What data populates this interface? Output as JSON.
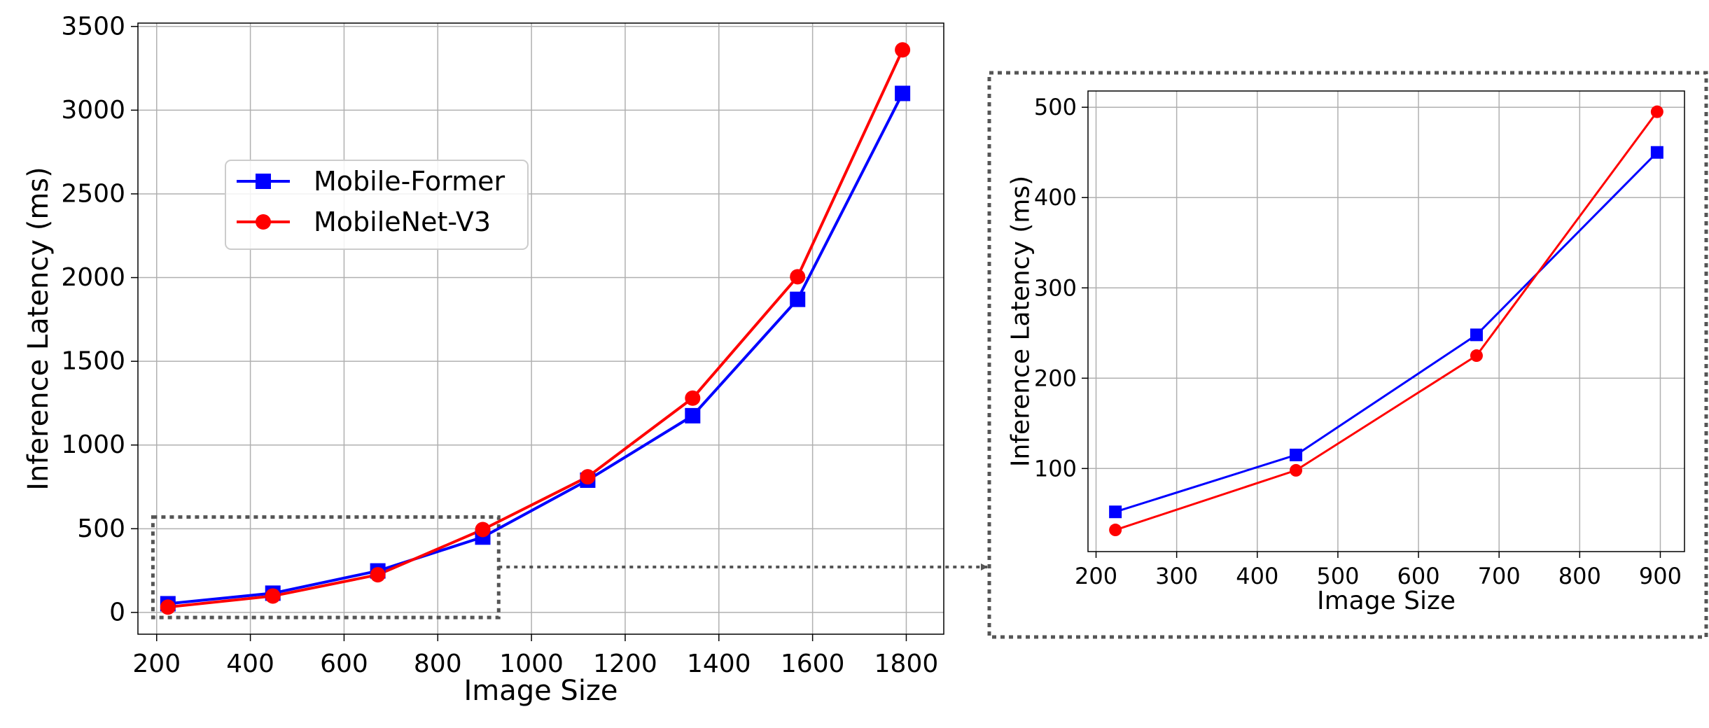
{
  "colors": {
    "mobile_former": "#0000ff",
    "mobilenet_v3": "#ff0000",
    "grid": "#b0b0b0",
    "zoom_frame": "#555555"
  },
  "chart_data": [
    {
      "id": "main",
      "type": "line",
      "xlabel": "Image Size",
      "ylabel": "Inference Latency (ms)",
      "xlim": [
        160,
        1880
      ],
      "ylim": [
        -130,
        3520
      ],
      "xticks": [
        200,
        400,
        600,
        800,
        1000,
        1200,
        1400,
        1600,
        1800
      ],
      "yticks": [
        0,
        500,
        1000,
        1500,
        2000,
        2500,
        3000,
        3500
      ],
      "grid": true,
      "legend": "upper-left",
      "series": [
        {
          "name": "Mobile-Former",
          "marker": "square",
          "color": "#0000ff",
          "x": [
            224,
            448,
            672,
            896,
            1120,
            1344,
            1568,
            1792
          ],
          "y": [
            52,
            115,
            248,
            450,
            790,
            1175,
            1870,
            3100
          ]
        },
        {
          "name": "MobileNet-V3",
          "marker": "circle",
          "color": "#ff0000",
          "x": [
            224,
            448,
            672,
            896,
            1120,
            1344,
            1568,
            1792
          ],
          "y": [
            32,
            98,
            225,
            495,
            810,
            1280,
            2005,
            3360
          ]
        }
      ],
      "zoom_region": {
        "x": [
          192,
          930
        ],
        "y": [
          -30,
          570
        ]
      }
    },
    {
      "id": "inset",
      "type": "line",
      "xlabel": "Image Size",
      "ylabel": "Inference Latency (ms)",
      "xlim": [
        190,
        930
      ],
      "ylim": [
        8,
        518
      ],
      "xticks": [
        200,
        300,
        400,
        500,
        600,
        700,
        800,
        900
      ],
      "yticks": [
        100,
        200,
        300,
        400,
        500
      ],
      "grid": true,
      "series": [
        {
          "name": "Mobile-Former",
          "marker": "square",
          "color": "#0000ff",
          "x": [
            224,
            448,
            672,
            896
          ],
          "y": [
            52,
            115,
            248,
            450
          ]
        },
        {
          "name": "MobileNet-V3",
          "marker": "circle",
          "color": "#ff0000",
          "x": [
            224,
            448,
            672,
            896
          ],
          "y": [
            32,
            98,
            225,
            495
          ]
        }
      ]
    }
  ]
}
